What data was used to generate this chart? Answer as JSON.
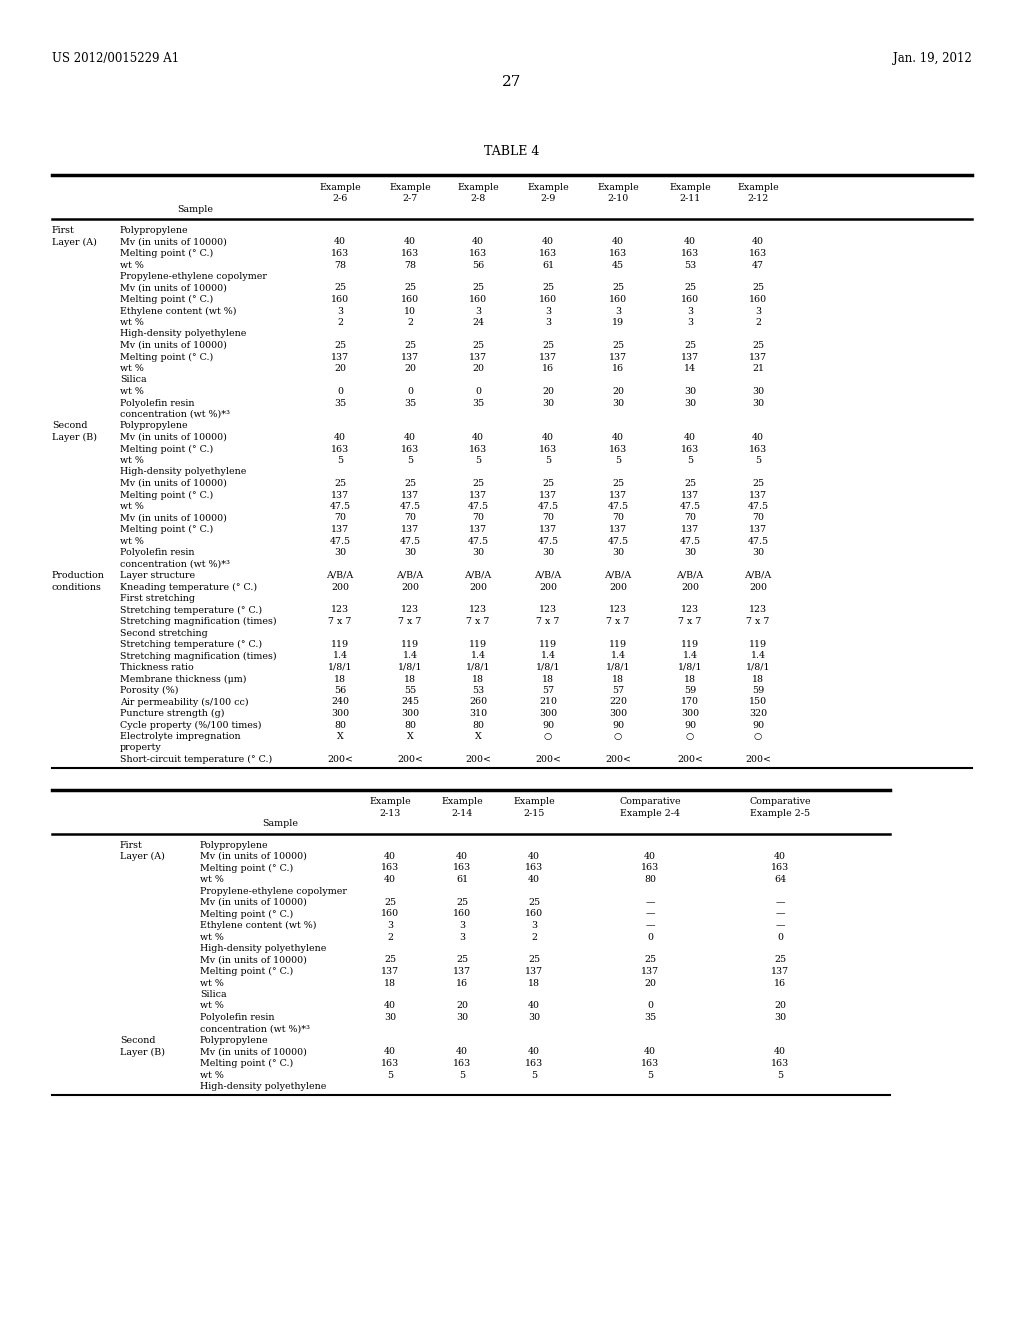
{
  "title_left": "US 2012/0015229 A1",
  "title_right": "Jan. 19, 2012",
  "page_num": "27",
  "table_title": "TABLE 4",
  "background_color": "#ffffff",
  "text_color": "#000000",
  "font_size": 6.8,
  "header_font_size": 6.8,
  "rows_top": [
    [
      "First",
      "Polypropylene",
      "",
      "",
      "",
      "",
      "",
      "",
      ""
    ],
    [
      "Layer (A)",
      "Mv (in units of 10000)",
      "40",
      "40",
      "40",
      "40",
      "40",
      "40",
      "40"
    ],
    [
      "",
      "Melting point (° C.)",
      "163",
      "163",
      "163",
      "163",
      "163",
      "163",
      "163"
    ],
    [
      "",
      "wt %",
      "78",
      "78",
      "56",
      "61",
      "45",
      "53",
      "47"
    ],
    [
      "",
      "Propylene-ethylene copolymer",
      "",
      "",
      "",
      "",
      "",
      "",
      ""
    ],
    [
      "",
      "Mv (in units of 10000)",
      "25",
      "25",
      "25",
      "25",
      "25",
      "25",
      "25"
    ],
    [
      "",
      "Melting point (° C.)",
      "160",
      "160",
      "160",
      "160",
      "160",
      "160",
      "160"
    ],
    [
      "",
      "Ethylene content (wt %)",
      "3",
      "10",
      "3",
      "3",
      "3",
      "3",
      "3"
    ],
    [
      "",
      "wt %",
      "2",
      "2",
      "24",
      "3",
      "19",
      "3",
      "2"
    ],
    [
      "",
      "High-density polyethylene",
      "",
      "",
      "",
      "",
      "",
      "",
      ""
    ],
    [
      "",
      "Mv (in units of 10000)",
      "25",
      "25",
      "25",
      "25",
      "25",
      "25",
      "25"
    ],
    [
      "",
      "Melting point (° C.)",
      "137",
      "137",
      "137",
      "137",
      "137",
      "137",
      "137"
    ],
    [
      "",
      "wt %",
      "20",
      "20",
      "20",
      "16",
      "16",
      "14",
      "21"
    ],
    [
      "",
      "Silica",
      "",
      "",
      "",
      "",
      "",
      "",
      ""
    ],
    [
      "",
      "wt %",
      "0",
      "0",
      "0",
      "20",
      "20",
      "30",
      "30"
    ],
    [
      "",
      "Polyolefin resin",
      "35",
      "35",
      "35",
      "30",
      "30",
      "30",
      "30"
    ],
    [
      "",
      "concentration (wt %)*³",
      "",
      "",
      "",
      "",
      "",
      "",
      ""
    ],
    [
      "Second",
      "Polypropylene",
      "",
      "",
      "",
      "",
      "",
      "",
      ""
    ],
    [
      "Layer (B)",
      "Mv (in units of 10000)",
      "40",
      "40",
      "40",
      "40",
      "40",
      "40",
      "40"
    ],
    [
      "",
      "Melting point (° C.)",
      "163",
      "163",
      "163",
      "163",
      "163",
      "163",
      "163"
    ],
    [
      "",
      "wt %",
      "5",
      "5",
      "5",
      "5",
      "5",
      "5",
      "5"
    ],
    [
      "",
      "High-density polyethylene",
      "",
      "",
      "",
      "",
      "",
      "",
      ""
    ],
    [
      "",
      "Mv (in units of 10000)",
      "25",
      "25",
      "25",
      "25",
      "25",
      "25",
      "25"
    ],
    [
      "",
      "Melting point (° C.)",
      "137",
      "137",
      "137",
      "137",
      "137",
      "137",
      "137"
    ],
    [
      "",
      "wt %",
      "47.5",
      "47.5",
      "47.5",
      "47.5",
      "47.5",
      "47.5",
      "47.5"
    ],
    [
      "",
      "Mv (in units of 10000)",
      "70",
      "70",
      "70",
      "70",
      "70",
      "70",
      "70"
    ],
    [
      "",
      "Melting point (° C.)",
      "137",
      "137",
      "137",
      "137",
      "137",
      "137",
      "137"
    ],
    [
      "",
      "wt %",
      "47.5",
      "47.5",
      "47.5",
      "47.5",
      "47.5",
      "47.5",
      "47.5"
    ],
    [
      "",
      "Polyolefin resin",
      "30",
      "30",
      "30",
      "30",
      "30",
      "30",
      "30"
    ],
    [
      "",
      "concentration (wt %)*³",
      "",
      "",
      "",
      "",
      "",
      "",
      ""
    ],
    [
      "Production",
      "Layer structure",
      "A/B/A",
      "A/B/A",
      "A/B/A",
      "A/B/A",
      "A/B/A",
      "A/B/A",
      "A/B/A"
    ],
    [
      "conditions",
      "Kneading temperature (° C.)",
      "200",
      "200",
      "200",
      "200",
      "200",
      "200",
      "200"
    ],
    [
      "",
      "First stretching",
      "",
      "",
      "",
      "",
      "",
      "",
      ""
    ],
    [
      "",
      "Stretching temperature (° C.)",
      "123",
      "123",
      "123",
      "123",
      "123",
      "123",
      "123"
    ],
    [
      "",
      "Stretching magnification (times)",
      "7 x 7",
      "7 x 7",
      "7 x 7",
      "7 x 7",
      "7 x 7",
      "7 x 7",
      "7 x 7"
    ],
    [
      "",
      "Second stretching",
      "",
      "",
      "",
      "",
      "",
      "",
      ""
    ],
    [
      "",
      "Stretching temperature (° C.)",
      "119",
      "119",
      "119",
      "119",
      "119",
      "119",
      "119"
    ],
    [
      "",
      "Stretching magnification (times)",
      "1.4",
      "1.4",
      "1.4",
      "1.4",
      "1.4",
      "1.4",
      "1.4"
    ],
    [
      "",
      "Thickness ratio",
      "1/8/1",
      "1/8/1",
      "1/8/1",
      "1/8/1",
      "1/8/1",
      "1/8/1",
      "1/8/1"
    ],
    [
      "",
      "Membrane thickness (μm)",
      "18",
      "18",
      "18",
      "18",
      "18",
      "18",
      "18"
    ],
    [
      "",
      "Porosity (%)",
      "56",
      "55",
      "53",
      "57",
      "57",
      "59",
      "59"
    ],
    [
      "",
      "Air permeability (s/100 cc)",
      "240",
      "245",
      "260",
      "210",
      "220",
      "170",
      "150"
    ],
    [
      "",
      "Puncture strength (g)",
      "300",
      "300",
      "310",
      "300",
      "300",
      "300",
      "320"
    ],
    [
      "",
      "Cycle property (%/100 times)",
      "80",
      "80",
      "80",
      "90",
      "90",
      "90",
      "90"
    ],
    [
      "",
      "Electrolyte impregnation",
      "X",
      "X",
      "X",
      "○",
      "○",
      "○",
      "○"
    ],
    [
      "",
      "property",
      "",
      "",
      "",
      "",
      "",
      "",
      ""
    ],
    [
      "",
      "Short-circuit temperature (° C.)",
      "200<",
      "200<",
      "200<",
      "200<",
      "200<",
      "200<",
      "200<"
    ]
  ],
  "rows_bottom": [
    [
      "First",
      "Polypropylene",
      "",
      "",
      "",
      "",
      ""
    ],
    [
      "Layer (A)",
      "Mv (in units of 10000)",
      "40",
      "40",
      "40",
      "40",
      "40"
    ],
    [
      "",
      "Melting point (° C.)",
      "163",
      "163",
      "163",
      "163",
      "163"
    ],
    [
      "",
      "wt %",
      "40",
      "61",
      "40",
      "80",
      "64"
    ],
    [
      "",
      "Propylene-ethylene copolymer",
      "",
      "",
      "",
      "",
      ""
    ],
    [
      "",
      "Mv (in units of 10000)",
      "25",
      "25",
      "25",
      "—",
      "—"
    ],
    [
      "",
      "Melting point (° C.)",
      "160",
      "160",
      "160",
      "—",
      "—"
    ],
    [
      "",
      "Ethylene content (wt %)",
      "3",
      "3",
      "3",
      "—",
      "—"
    ],
    [
      "",
      "wt %",
      "2",
      "3",
      "2",
      "0",
      "0"
    ],
    [
      "",
      "High-density polyethylene",
      "",
      "",
      "",
      "",
      ""
    ],
    [
      "",
      "Mv (in units of 10000)",
      "25",
      "25",
      "25",
      "25",
      "25"
    ],
    [
      "",
      "Melting point (° C.)",
      "137",
      "137",
      "137",
      "137",
      "137"
    ],
    [
      "",
      "wt %",
      "18",
      "16",
      "18",
      "20",
      "16"
    ],
    [
      "",
      "Silica",
      "",
      "",
      "",
      "",
      ""
    ],
    [
      "",
      "wt %",
      "40",
      "20",
      "40",
      "0",
      "20"
    ],
    [
      "",
      "Polyolefin resin",
      "30",
      "30",
      "30",
      "35",
      "30"
    ],
    [
      "",
      "concentration (wt %)*³",
      "",
      "",
      "",
      "",
      ""
    ],
    [
      "Second",
      "Polypropylene",
      "",
      "",
      "",
      "",
      ""
    ],
    [
      "Layer (B)",
      "Mv (in units of 10000)",
      "40",
      "40",
      "40",
      "40",
      "40"
    ],
    [
      "",
      "Melting point (° C.)",
      "163",
      "163",
      "163",
      "163",
      "163"
    ],
    [
      "",
      "wt %",
      "5",
      "5",
      "5",
      "5",
      "5"
    ],
    [
      "",
      "High-density polyethylene",
      "",
      "",
      "",
      "",
      ""
    ]
  ],
  "top_header_line1": [
    "Example",
    "Example",
    "Example",
    "Example",
    "Example",
    "Example",
    "Example"
  ],
  "top_header_line2": [
    "2-6",
    "2-7",
    "2-8",
    "2-9",
    "2-10",
    "2-11",
    "2-12"
  ],
  "bot_header_line1": [
    "Example",
    "Example",
    "Example",
    "Comparative",
    "Comparative"
  ],
  "bot_header_line2": [
    "2-13",
    "2-14",
    "2-15",
    "Example 2-4",
    "Example 2-5"
  ]
}
